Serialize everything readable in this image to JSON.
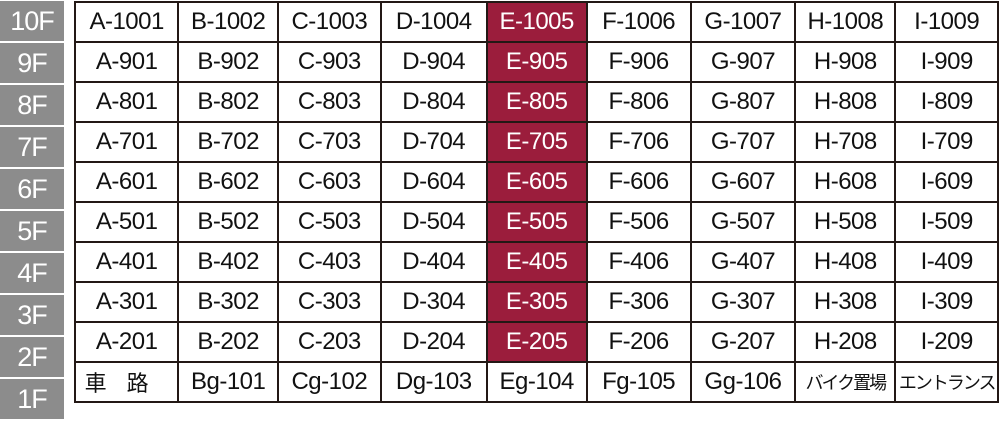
{
  "accent_color": "#9b1d3c",
  "floor_label_color": "#8c8c8c",
  "highlight_column": 4,
  "floors": [
    "10F",
    "9F",
    "8F",
    "7F",
    "6F",
    "5F",
    "4F",
    "3F",
    "2F",
    "1F"
  ],
  "rows": [
    [
      "A-1001",
      "B-1002",
      "C-1003",
      "D-1004",
      "E-1005",
      "F-1006",
      "G-1007",
      "H-1008",
      "I-1009"
    ],
    [
      "A-901",
      "B-902",
      "C-903",
      "D-904",
      "E-905",
      "F-906",
      "G-907",
      "H-908",
      "I-909"
    ],
    [
      "A-801",
      "B-802",
      "C-803",
      "D-804",
      "E-805",
      "F-806",
      "G-807",
      "H-808",
      "I-809"
    ],
    [
      "A-701",
      "B-702",
      "C-703",
      "D-704",
      "E-705",
      "F-706",
      "G-707",
      "H-708",
      "I-709"
    ],
    [
      "A-601",
      "B-602",
      "C-603",
      "D-604",
      "E-605",
      "F-606",
      "G-607",
      "H-608",
      "I-609"
    ],
    [
      "A-501",
      "B-502",
      "C-503",
      "D-504",
      "E-505",
      "F-506",
      "G-507",
      "H-508",
      "I-509"
    ],
    [
      "A-401",
      "B-402",
      "C-403",
      "D-404",
      "E-405",
      "F-406",
      "G-407",
      "H-408",
      "I-409"
    ],
    [
      "A-301",
      "B-302",
      "C-303",
      "D-304",
      "E-305",
      "F-306",
      "G-307",
      "H-308",
      "I-309"
    ],
    [
      "A-201",
      "B-202",
      "C-203",
      "D-204",
      "E-205",
      "F-206",
      "G-207",
      "H-208",
      "I-209"
    ],
    [
      "車路",
      "Bg-101",
      "Cg-102",
      "Dg-103",
      "Eg-104",
      "Fg-105",
      "Gg-106",
      "バイク置場",
      "エントランス"
    ]
  ]
}
